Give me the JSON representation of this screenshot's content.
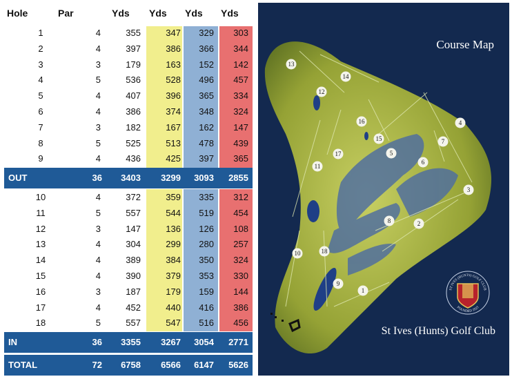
{
  "header": {
    "hole": "Hole",
    "par": "Par",
    "yds1": "Yds",
    "yds2": "Yds",
    "yds3": "Yds",
    "yds4": "Yds"
  },
  "front": [
    {
      "hole": "1",
      "par": "4",
      "y1": "355",
      "y2": "347",
      "y3": "329",
      "y4": "303"
    },
    {
      "hole": "2",
      "par": "4",
      "y1": "397",
      "y2": "386",
      "y3": "366",
      "y4": "344"
    },
    {
      "hole": "3",
      "par": "3",
      "y1": "179",
      "y2": "163",
      "y3": "152",
      "y4": "142"
    },
    {
      "hole": "4",
      "par": "5",
      "y1": "536",
      "y2": "528",
      "y3": "496",
      "y4": "457"
    },
    {
      "hole": "5",
      "par": "4",
      "y1": "407",
      "y2": "396",
      "y3": "365",
      "y4": "334"
    },
    {
      "hole": "6",
      "par": "4",
      "y1": "386",
      "y2": "374",
      "y3": "348",
      "y4": "324"
    },
    {
      "hole": "7",
      "par": "3",
      "y1": "182",
      "y2": "167",
      "y3": "162",
      "y4": "147"
    },
    {
      "hole": "8",
      "par": "5",
      "y1": "525",
      "y2": "513",
      "y3": "478",
      "y4": "439"
    },
    {
      "hole": "9",
      "par": "4",
      "y1": "436",
      "y2": "425",
      "y3": "397",
      "y4": "365"
    }
  ],
  "out": {
    "label": "OUT",
    "par": "36",
    "y1": "3403",
    "y2": "3299",
    "y3": "3093",
    "y4": "2855"
  },
  "back": [
    {
      "hole": "10",
      "par": "4",
      "y1": "372",
      "y2": "359",
      "y3": "335",
      "y4": "312"
    },
    {
      "hole": "11",
      "par": "5",
      "y1": "557",
      "y2": "544",
      "y3": "519",
      "y4": "454"
    },
    {
      "hole": "12",
      "par": "3",
      "y1": "147",
      "y2": "136",
      "y3": "126",
      "y4": "108"
    },
    {
      "hole": "13",
      "par": "4",
      "y1": "304",
      "y2": "299",
      "y3": "280",
      "y4": "257"
    },
    {
      "hole": "14",
      "par": "4",
      "y1": "389",
      "y2": "384",
      "y3": "350",
      "y4": "324"
    },
    {
      "hole": "15",
      "par": "4",
      "y1": "390",
      "y2": "379",
      "y3": "353",
      "y4": "330"
    },
    {
      "hole": "16",
      "par": "3",
      "y1": "187",
      "y2": "179",
      "y3": "159",
      "y4": "144"
    },
    {
      "hole": "17",
      "par": "4",
      "y1": "452",
      "y2": "440",
      "y3": "416",
      "y4": "386"
    },
    {
      "hole": "18",
      "par": "5",
      "y1": "557",
      "y2": "547",
      "y3": "516",
      "y4": "456"
    }
  ],
  "in": {
    "label": "IN",
    "par": "36",
    "y1": "3355",
    "y2": "3267",
    "y3": "3054",
    "y4": "2771"
  },
  "total": {
    "label": "TOTAL",
    "par": "72",
    "y1": "6758",
    "y2": "6566",
    "y3": "6147",
    "y4": "5626"
  },
  "map": {
    "title": "Course Map",
    "club_name": "St Ives (Hunts) Golf Club",
    "crest_text_top": "ST IVES (HUNTS) GOLF CLUB",
    "crest_text_bottom": "FOUNDED 1923",
    "hole_markers": [
      "1",
      "2",
      "3",
      "4",
      "5",
      "6",
      "7",
      "8",
      "9",
      "10",
      "11",
      "12",
      "13",
      "14",
      "15",
      "16",
      "17",
      "18"
    ]
  },
  "colors": {
    "yellow": "#f1ee8d",
    "blue": "#8fb0d4",
    "red": "#e87070",
    "band": "#1f5a97",
    "map_bg": "#13294f",
    "grass": "#9aa83a"
  }
}
